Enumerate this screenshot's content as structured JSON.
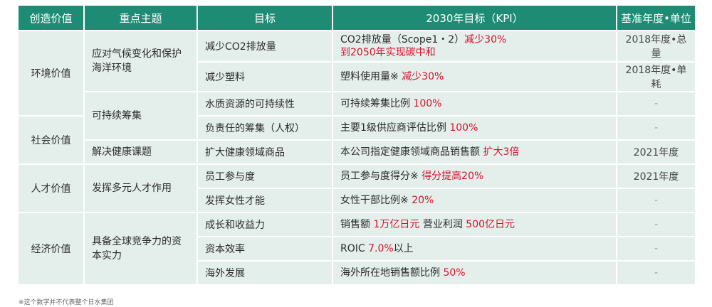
{
  "header": {
    "col_value": "创造价值",
    "col_theme": "重点主题",
    "col_target": "目标",
    "col_kpi": "2030年目标（KPI）",
    "col_base": "基准年度•单位"
  },
  "categories": {
    "environment": "环境价值",
    "social": "社会价值",
    "talent": "人才价值",
    "economic": "经济价值"
  },
  "themes": {
    "climate": "应对气候变化和保护海洋环境",
    "sourcing": "可持续筹集",
    "health": "解决健康课题",
    "diversity": "发挥多元人才作用",
    "competitiveness": "具备全球竞争力的资本实力"
  },
  "rows": [
    {
      "target": "减少CO2排放量",
      "kpi_plain": "CO2排放量（Scope1・2）",
      "kpi_red": "减少30%",
      "kpi_line2": "到2050年实现碳中和",
      "base": "2018年度•总量"
    },
    {
      "target": "减少塑料",
      "kpi_plain": "塑料使用量※ ",
      "kpi_red": "减少30%",
      "base": "2018年度•单耗"
    },
    {
      "target": "水质资源的可持续性",
      "kpi_plain": "可持续筹集比例 ",
      "kpi_red": "100%",
      "base": "-"
    },
    {
      "target": "负责任的筹集（人权）",
      "kpi_plain": "主要1级供应商评估比例 ",
      "kpi_red": "100%",
      "base": "-"
    },
    {
      "target": "扩大健康领域商品",
      "kpi_plain": "本公司指定健康领域商品销售额 ",
      "kpi_red": "扩大3倍",
      "base": "2021年度"
    },
    {
      "target": "员工参与度",
      "kpi_plain": "员工参与度得分※ ",
      "kpi_red": "得分提高20%",
      "base": "2021年度"
    },
    {
      "target": "发挥女性才能",
      "kpi_plain": "女性干部比例※ ",
      "kpi_red": "20%",
      "base": "-"
    },
    {
      "target": "成长和收益力",
      "kpi_plain": "销售额 ",
      "kpi_red": "1万亿日元",
      "kpi_plain2": " 营业利润 ",
      "kpi_red2": "500亿日元",
      "base": "-"
    },
    {
      "target": "资本效率",
      "kpi_plain": "ROIC ",
      "kpi_red": "7.0%",
      "kpi_plain2": "以上",
      "base": "-"
    },
    {
      "target": "海外发展",
      "kpi_plain": "海外所在地销售额比例 ",
      "kpi_red": "50%",
      "base": "-"
    }
  ],
  "footnote": "※这个数字并不代表整个日水集团",
  "colors": {
    "header_bg": "#1e8c75",
    "cell_bg": "#e4efec",
    "highlight": "#d4122a"
  }
}
